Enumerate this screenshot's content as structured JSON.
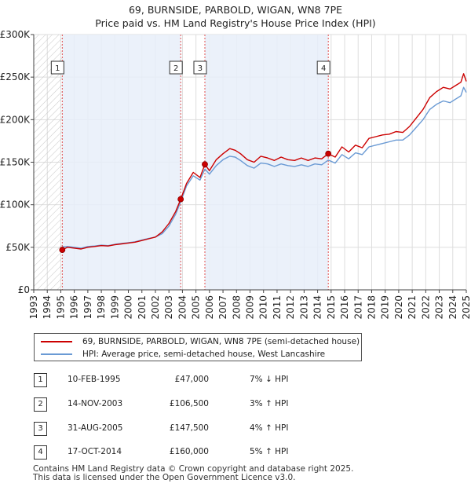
{
  "title_line1": "69, BURNSIDE, PARBOLD, WIGAN, WN8 7PE",
  "title_line2": "Price paid vs. HM Land Registry's House Price Index (HPI)",
  "chart_data": {
    "type": "line",
    "title": "69, BURNSIDE, PARBOLD, WIGAN, WN8 7PE — Price paid vs. HM Land Registry's House Price Index (HPI)",
    "xlabel": "",
    "ylabel": "",
    "xlim": [
      1993,
      2025
    ],
    "ylim": [
      0,
      300000
    ],
    "y_ticks": [
      0,
      50000,
      100000,
      150000,
      200000,
      250000,
      300000
    ],
    "y_tick_labels": [
      "£0",
      "£50K",
      "£100K",
      "£150K",
      "£200K",
      "£250K",
      "£300K"
    ],
    "x_ticks": [
      1993,
      1994,
      1995,
      1996,
      1997,
      1998,
      1999,
      2000,
      2001,
      2002,
      2003,
      2004,
      2005,
      2006,
      2007,
      2008,
      2009,
      2010,
      2011,
      2012,
      2013,
      2014,
      2015,
      2016,
      2017,
      2018,
      2019,
      2020,
      2021,
      2022,
      2023,
      2024,
      2025
    ],
    "x_tick_labels": [
      "1993",
      "1994",
      "1995",
      "1996",
      "1997",
      "1998",
      "1999",
      "2000",
      "2001",
      "2002",
      "2003",
      "2004",
      "2005",
      "2006",
      "2007",
      "2008",
      "2009",
      "2010",
      "2011",
      "2012",
      "2013",
      "2014",
      "2015",
      "2016",
      "2017",
      "2018",
      "2019",
      "2020",
      "2021",
      "2022",
      "2023",
      "2024",
      "2025"
    ],
    "grid": true,
    "hatched_before": 1995.11,
    "series": [
      {
        "name": "69, BURNSIDE, PARBOLD, WIGAN, WN8 7PE (semi-detached house)",
        "color": "#cc0000",
        "x": [
          1995.11,
          1995.5,
          1996.0,
          1996.5,
          1997.0,
          1997.5,
          1998.0,
          1998.5,
          1999.0,
          1999.5,
          2000.0,
          2000.5,
          2001.0,
          2001.5,
          2002.0,
          2002.5,
          2003.0,
          2003.5,
          2003.87,
          2004.3,
          2004.8,
          2005.3,
          2005.66,
          2006.0,
          2006.5,
          2007.0,
          2007.5,
          2007.9,
          2008.3,
          2008.8,
          2009.3,
          2009.8,
          2010.3,
          2010.8,
          2011.3,
          2011.8,
          2012.3,
          2012.8,
          2013.3,
          2013.8,
          2014.3,
          2014.79,
          2015.3,
          2015.8,
          2016.3,
          2016.8,
          2017.3,
          2017.8,
          2018.3,
          2018.8,
          2019.3,
          2019.8,
          2020.3,
          2020.8,
          2021.3,
          2021.8,
          2022.3,
          2022.8,
          2023.3,
          2023.8,
          2024.2,
          2024.6,
          2024.8,
          2025.0
        ],
        "y": [
          47000,
          50000,
          49000,
          48000,
          50000,
          51000,
          52000,
          51500,
          53000,
          54000,
          55000,
          56000,
          58000,
          60000,
          62000,
          68000,
          78000,
          92000,
          106500,
          125000,
          138000,
          132000,
          147500,
          140000,
          153000,
          160000,
          166000,
          164000,
          160000,
          153000,
          150000,
          157000,
          155000,
          152000,
          156000,
          153000,
          152000,
          155000,
          152000,
          155000,
          154000,
          160000,
          156000,
          168000,
          162000,
          170000,
          167000,
          178000,
          180000,
          182000,
          183000,
          186000,
          185000,
          192000,
          202000,
          212000,
          226000,
          233000,
          238000,
          236000,
          240000,
          244000,
          254000,
          245000
        ]
      },
      {
        "name": "HPI: Average price, semi-detached house, West Lancashire",
        "color": "#6a9ad4",
        "x": [
          1995.11,
          1995.5,
          1996.0,
          1996.5,
          1997.0,
          1997.5,
          1998.0,
          1998.5,
          1999.0,
          1999.5,
          2000.0,
          2000.5,
          2001.0,
          2001.5,
          2002.0,
          2002.5,
          2003.0,
          2003.5,
          2003.87,
          2004.3,
          2004.8,
          2005.3,
          2005.66,
          2006.0,
          2006.5,
          2007.0,
          2007.5,
          2007.9,
          2008.3,
          2008.8,
          2009.3,
          2009.8,
          2010.3,
          2010.8,
          2011.3,
          2011.8,
          2012.3,
          2012.8,
          2013.3,
          2013.8,
          2014.3,
          2014.79,
          2015.3,
          2015.8,
          2016.3,
          2016.8,
          2017.3,
          2017.8,
          2018.3,
          2018.8,
          2019.3,
          2019.8,
          2020.3,
          2020.8,
          2021.3,
          2021.8,
          2022.3,
          2022.8,
          2023.3,
          2023.8,
          2024.2,
          2024.6,
          2024.8,
          2025.0
        ],
        "y": [
          50500,
          51000,
          50000,
          49000,
          51000,
          51500,
          52500,
          52000,
          53500,
          54500,
          55500,
          56500,
          58500,
          60500,
          62000,
          66000,
          75000,
          89000,
          103500,
          122000,
          134000,
          129000,
          142000,
          136000,
          146000,
          153000,
          157000,
          156000,
          152000,
          146000,
          143000,
          149000,
          148000,
          145000,
          148000,
          146000,
          145000,
          147000,
          145000,
          148000,
          147000,
          152500,
          149000,
          159000,
          154000,
          161000,
          159000,
          168000,
          170000,
          172000,
          174000,
          176000,
          176000,
          182000,
          191000,
          200000,
          212000,
          218000,
          222000,
          220000,
          224000,
          228000,
          238000,
          232000
        ]
      }
    ],
    "sales": [
      {
        "label": "1",
        "x": 1995.11,
        "y": 47000
      },
      {
        "label": "2",
        "x": 2003.87,
        "y": 106500
      },
      {
        "label": "3",
        "x": 2005.66,
        "y": 147500
      },
      {
        "label": "4",
        "x": 2014.79,
        "y": 160000
      }
    ]
  },
  "legend": {
    "property_label": "69, BURNSIDE, PARBOLD, WIGAN, WN8 7PE (semi-detached house)",
    "hpi_label": "HPI: Average price, semi-detached house, West Lancashire",
    "property_color": "#cc0000",
    "hpi_color": "#6a9ad4"
  },
  "transactions": [
    {
      "num": "1",
      "date": "10-FEB-1995",
      "price": "£47,000",
      "hpi": "7% ↓ HPI"
    },
    {
      "num": "2",
      "date": "14-NOV-2003",
      "price": "£106,500",
      "hpi": "3% ↑ HPI"
    },
    {
      "num": "3",
      "date": "31-AUG-2005",
      "price": "£147,500",
      "hpi": "4% ↑ HPI"
    },
    {
      "num": "4",
      "date": "17-OCT-2014",
      "price": "£160,000",
      "hpi": "5% ↑ HPI"
    }
  ],
  "footer_line1": "Contains HM Land Registry data © Crown copyright and database right 2025.",
  "footer_line2": "This data is licensed under the Open Government Licence v3.0."
}
